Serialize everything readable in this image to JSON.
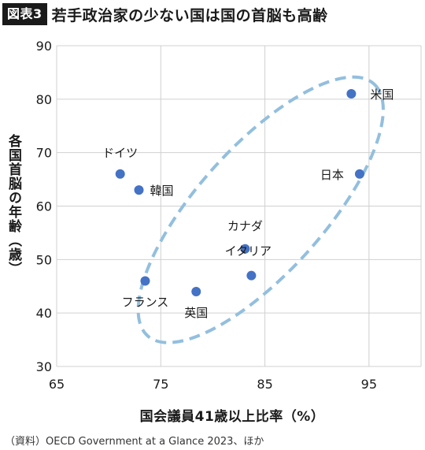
{
  "header": {
    "badge": "図表3",
    "title": "若手政治家の少ない国は国の首脳も高齢"
  },
  "source": "（資料）OECD Government at a Glance 2023、ほか",
  "colors": {
    "point": "#4472c4",
    "ellipse": "#93bfde",
    "grid": "#d0d0d0"
  },
  "chart_data": {
    "type": "scatter",
    "title": "若手政治家の少ない国は国の首脳も高齢",
    "xlabel": "国会議員41歳以上比率（%）",
    "ylabel": "各国首脳の年齢（歳）",
    "xlim": [
      65,
      100
    ],
    "ylim": [
      30,
      90
    ],
    "xticks": [
      65,
      75,
      85,
      95
    ],
    "yticks": [
      30,
      40,
      50,
      60,
      70,
      80,
      90
    ],
    "grid": true,
    "points": [
      {
        "label": "米国",
        "x": 93.3,
        "y": 81
      },
      {
        "label": "日本",
        "x": 94.1,
        "y": 66
      },
      {
        "label": "ドイツ",
        "x": 71.1,
        "y": 66
      },
      {
        "label": "韓国",
        "x": 72.9,
        "y": 63
      },
      {
        "label": "カナダ",
        "x": 83.1,
        "y": 52
      },
      {
        "label": "イタリア",
        "x": 83.7,
        "y": 47
      },
      {
        "label": "フランス",
        "x": 73.5,
        "y": 46
      },
      {
        "label": "英国",
        "x": 78.4,
        "y": 44
      }
    ],
    "annotation": {
      "shape": "dashed-ellipse",
      "encloses": "all points"
    }
  }
}
